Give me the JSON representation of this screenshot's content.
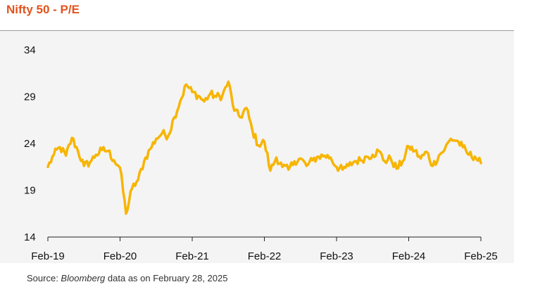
{
  "title": "Nifty 50 - P/E",
  "source": {
    "prefix": "Source: ",
    "emphasis": "Bloomberg",
    "suffix": " data as on February 28, 2025"
  },
  "colors": {
    "line": "#f7b500",
    "title": "#e2531d",
    "panel": "#f4f4f4",
    "axis": "#222222"
  },
  "chart_data": {
    "type": "line",
    "title": "Nifty 50 - P/E",
    "xlabel": "",
    "ylabel": "",
    "x_ticks": [
      "Feb-19",
      "Feb-20",
      "Feb-21",
      "Feb-22",
      "Feb-23",
      "Feb-24",
      "Feb-25"
    ],
    "y_ticks": [
      14,
      19,
      24,
      29,
      34
    ],
    "ylim": [
      14,
      34
    ],
    "xlim": [
      "2019-02",
      "2025-02"
    ],
    "grid": false,
    "legend": "none",
    "series": [
      {
        "x": [
          "2019-02",
          "2019-03",
          "2019-04",
          "2019-05",
          "2019-06",
          "2019-07",
          "2019-08",
          "2019-09",
          "2019-10",
          "2019-11",
          "2019-12",
          "2020-01",
          "2020-02",
          "2020-03",
          "2020-04",
          "2020-05",
          "2020-06",
          "2020-07",
          "2020-08",
          "2020-09",
          "2020-10",
          "2020-11",
          "2020-12",
          "2021-01",
          "2021-02",
          "2021-03",
          "2021-04",
          "2021-05",
          "2021-06",
          "2021-07",
          "2021-08",
          "2021-09",
          "2021-10",
          "2021-11",
          "2021-12",
          "2022-01",
          "2022-02",
          "2022-03",
          "2022-04",
          "2022-05",
          "2022-06",
          "2022-07",
          "2022-08",
          "2022-09",
          "2022-10",
          "2022-11",
          "2022-12",
          "2023-01",
          "2023-02",
          "2023-03",
          "2023-04",
          "2023-05",
          "2023-06",
          "2023-07",
          "2023-08",
          "2023-09",
          "2023-10",
          "2023-11",
          "2023-12",
          "2024-01",
          "2024-02",
          "2024-03",
          "2024-04",
          "2024-05",
          "2024-06",
          "2024-07",
          "2024-08",
          "2024-09",
          "2024-10",
          "2024-11",
          "2024-12",
          "2025-01",
          "2025-02"
        ],
        "y": [
          21.5,
          22.8,
          23.6,
          22.7,
          24.6,
          23.2,
          21.6,
          22.0,
          22.8,
          23.3,
          23.2,
          22.2,
          21.4,
          16.5,
          19.2,
          20.1,
          22.1,
          23.4,
          24.5,
          25.1,
          24.8,
          26.8,
          28.5,
          30.3,
          29.5,
          29.1,
          28.5,
          29.3,
          29.0,
          29.1,
          30.6,
          27.5,
          26.8,
          27.8,
          25.4,
          23.8,
          24.2,
          21.1,
          22.5,
          21.5,
          21.2,
          22.1,
          22.4,
          21.6,
          22.2,
          22.6,
          22.7,
          22.5,
          21.5,
          21.2,
          21.6,
          22.1,
          22.2,
          22.6,
          22.8,
          23.2,
          22.1,
          22.4,
          21.3,
          22.1,
          23.7,
          23.2,
          22.4,
          23.1,
          21.6,
          22.7,
          23.4,
          24.5,
          24.3,
          23.6,
          22.8,
          22.6,
          21.9
        ]
      }
    ]
  }
}
